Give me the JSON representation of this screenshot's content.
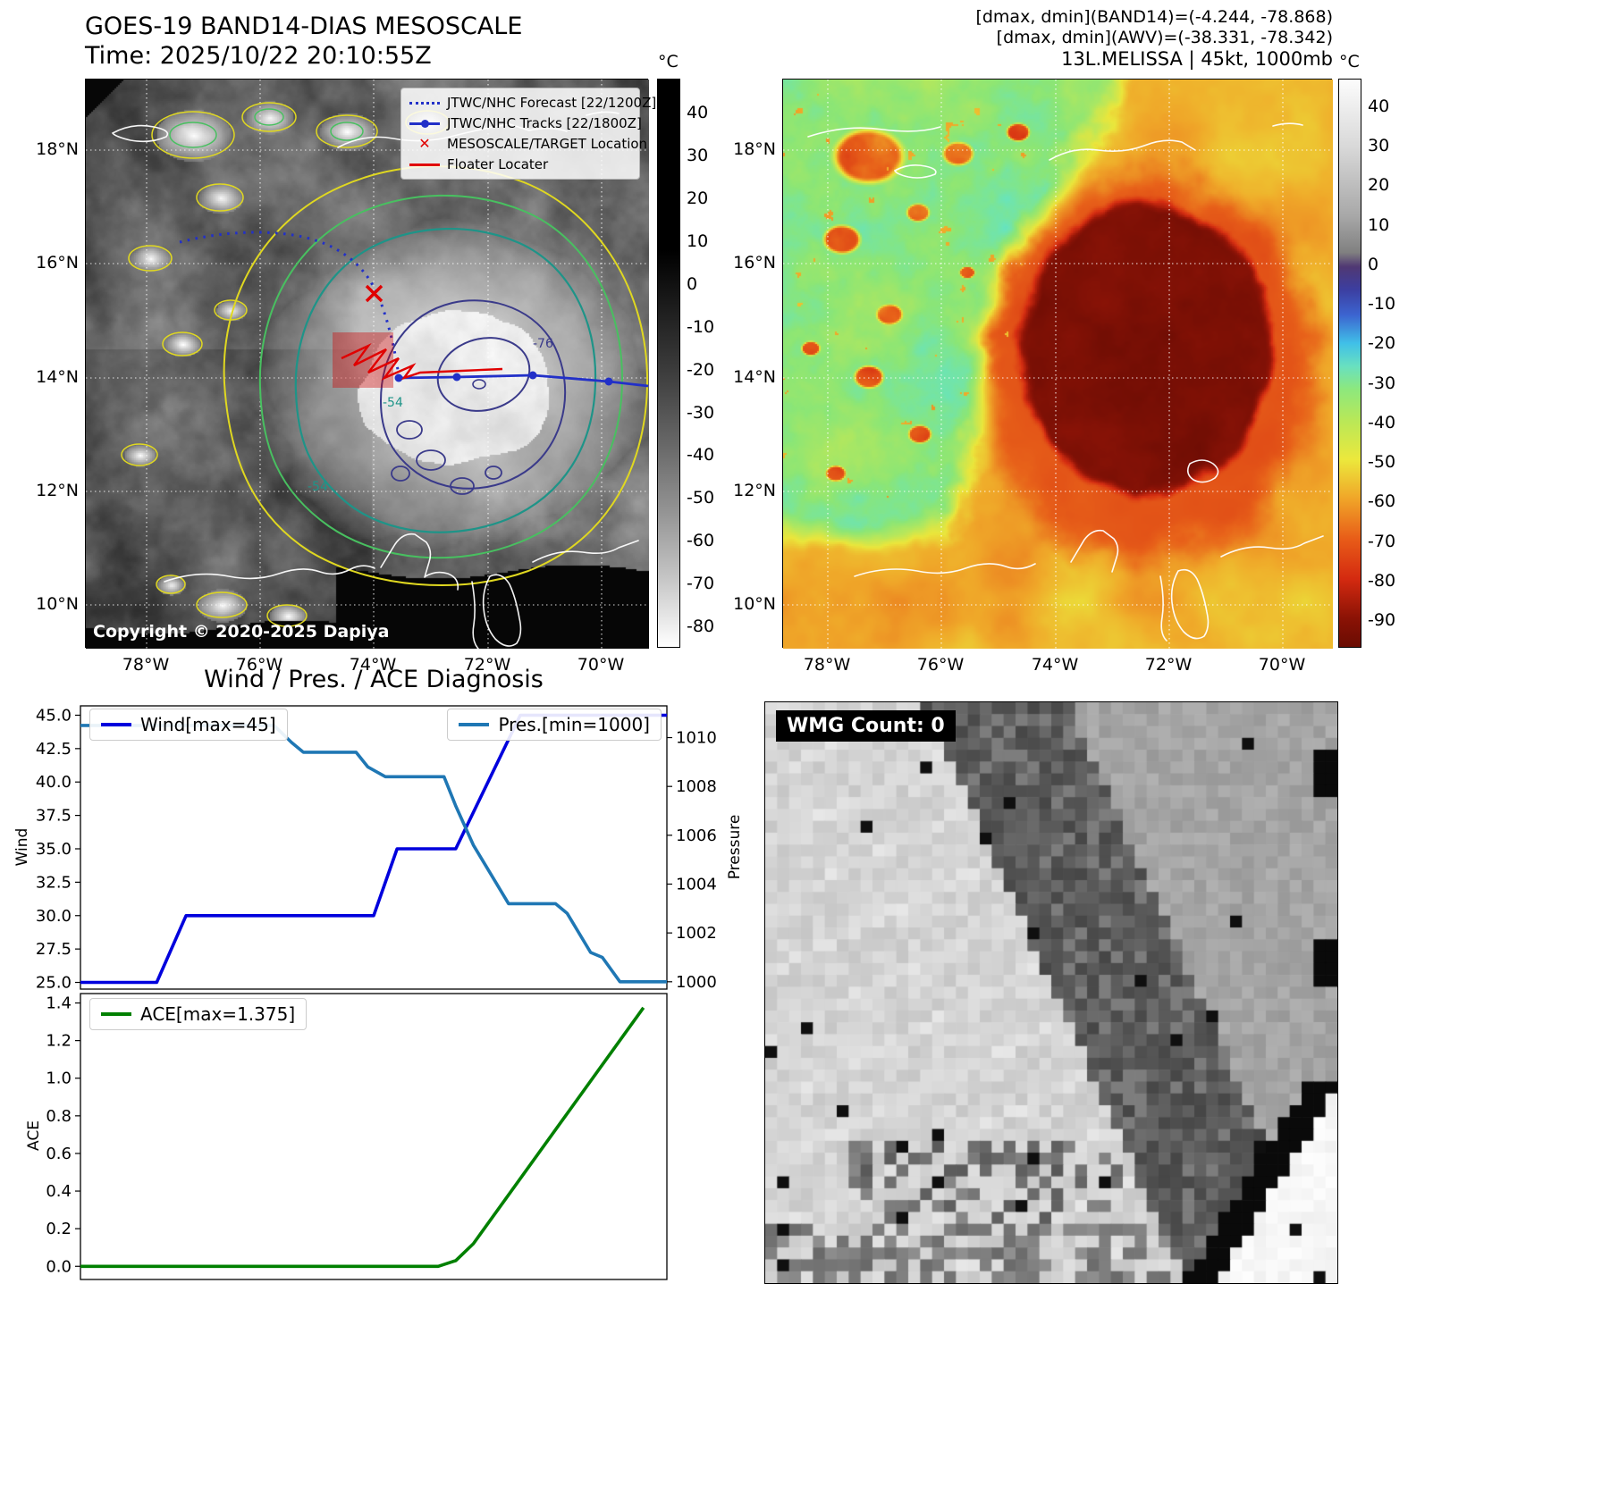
{
  "band14_panel": {
    "title": "GOES-19 BAND14-DIAS MESOSCALE",
    "time": "Time: 2025/10/22 20:10:55Z",
    "copyright": "Copyright © 2020-2025 Dapiya",
    "colorbar_unit": "°C",
    "colorbar_ticks": [
      40,
      30,
      20,
      10,
      0,
      -10,
      -20,
      -30,
      -40,
      -50,
      -60,
      -70,
      -80
    ],
    "lat_ticks": [
      "18°N",
      "16°N",
      "14°N",
      "12°N",
      "10°N"
    ],
    "lon_ticks": [
      "78°W",
      "76°W",
      "74°W",
      "72°W",
      "70°W"
    ],
    "legend": [
      {
        "symbol": "blue-dotted-line",
        "label": "JTWC/NHC Forecast [22/1200Z]"
      },
      {
        "symbol": "blue-line-with-dot",
        "label": "JTWC/NHC Tracks [22/1800Z]"
      },
      {
        "symbol": "red-x",
        "label": "MESOSCALE/TARGET Location"
      },
      {
        "symbol": "red-line",
        "label": "Floater Locater"
      }
    ],
    "contour_labels": [
      "-54",
      "-76"
    ]
  },
  "awv_panel": {
    "header_lines": [
      "[dmax, dmin](BAND14)=(-4.244, -78.868)",
      "[dmax, dmin](AWV)=(-38.331, -78.342)",
      "13L.MELISSA | 45kt, 1000mb"
    ],
    "colorbar_unit": "°C",
    "colorbar_ticks": [
      40,
      30,
      20,
      10,
      0,
      -10,
      -20,
      -30,
      -40,
      -50,
      -60,
      -70,
      -80,
      -90
    ],
    "lat_ticks": [
      "18°N",
      "16°N",
      "14°N",
      "12°N",
      "10°N"
    ],
    "lon_ticks": [
      "78°W",
      "76°W",
      "74°W",
      "72°W",
      "70°W"
    ]
  },
  "diagnosis_panel": {
    "title": "Wind / Pres. / ACE Diagnosis"
  },
  "wmg_panel": {
    "label": "WMG Count: 0"
  },
  "chart_data": [
    {
      "type": "line",
      "title": "Wind / Pres. / ACE Diagnosis",
      "xlabel": "",
      "ylabel": "Wind",
      "y2label": "Pressure",
      "ylim": [
        24.5,
        45.7
      ],
      "y2lim": [
        999.7,
        1011.3
      ],
      "yticks": [
        "45.0",
        "42.5",
        "40.0",
        "37.5",
        "35.0",
        "32.5",
        "30.0",
        "27.5",
        "25.0"
      ],
      "y2ticks": [
        "1010",
        "1008",
        "1006",
        "1004",
        "1002",
        "1000"
      ],
      "x_range": [
        0,
        100
      ],
      "grid": false,
      "series": [
        {
          "name": "Wind[max=45]",
          "axis": "left",
          "color": "#0000dd",
          "x": [
            0,
            13,
            18,
            50,
            54,
            64,
            75,
            100
          ],
          "values": [
            25,
            25,
            30,
            30,
            35,
            35,
            45,
            45
          ]
        },
        {
          "name": "Pres.[min=1000]",
          "axis": "right",
          "color": "#1f77b4",
          "x": [
            0,
            33,
            36,
            38,
            47,
            49,
            52,
            62,
            64,
            67,
            70,
            73,
            81,
            83,
            87,
            89,
            92,
            100
          ],
          "values": [
            1010.5,
            1010.5,
            1009.8,
            1009.4,
            1009.4,
            1008.8,
            1008.4,
            1008.4,
            1007.2,
            1005.6,
            1004.4,
            1003.2,
            1003.2,
            1002.8,
            1001.2,
            1001.0,
            1000.0,
            1000.0
          ]
        }
      ]
    },
    {
      "type": "line",
      "ylabel": "ACE",
      "ylim": [
        -0.07,
        1.45
      ],
      "yticks": [
        "1.4",
        "1.2",
        "1.0",
        "0.8",
        "0.6",
        "0.4",
        "0.2",
        "0.0"
      ],
      "x_range": [
        0,
        100
      ],
      "grid": false,
      "series": [
        {
          "name": "ACE[max=1.375]",
          "color": "#008000",
          "x": [
            0,
            61,
            64,
            67,
            96
          ],
          "values": [
            0,
            0,
            0.03,
            0.12,
            1.375
          ]
        }
      ]
    }
  ]
}
